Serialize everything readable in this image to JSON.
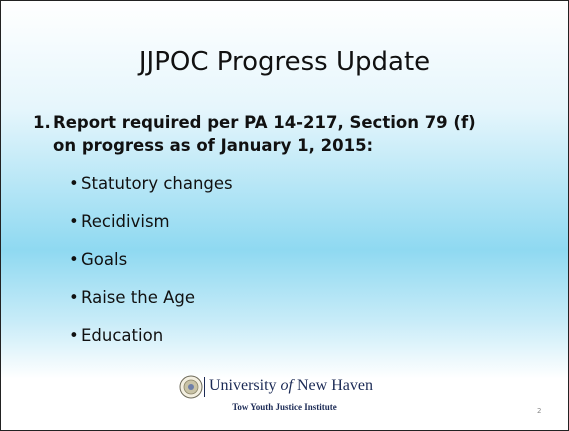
{
  "title": "JJPOC Progress Update",
  "item": {
    "number": "1.",
    "lines": [
      "Report required per PA 14-217, Section 79 (f)",
      "on progress as of January 1, 2015:"
    ]
  },
  "bullets": [
    "Statutory changes",
    "Recidivism",
    "Goals",
    "Raise the Age",
    "Education"
  ],
  "footer": {
    "university": [
      "University",
      "of",
      "New Haven"
    ],
    "institute": "Tow Youth Justice Institute"
  },
  "page_number": "2"
}
